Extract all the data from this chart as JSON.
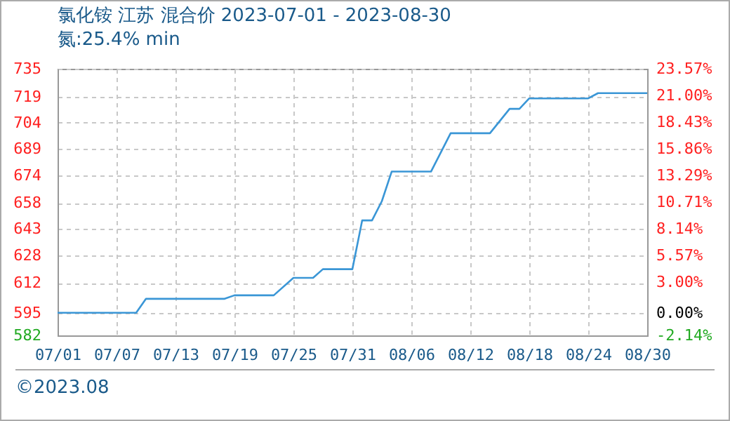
{
  "chart_data": {
    "type": "line",
    "title": "氯化铵 江苏 混合价 2023-07-01 - 2023-08-30",
    "subtitle": "氮:25.4% min",
    "x": [
      "2023-07-01",
      "2023-07-09",
      "2023-07-10",
      "2023-07-18",
      "2023-07-19",
      "2023-07-23",
      "2023-07-25",
      "2023-07-27",
      "2023-07-28",
      "2023-07-31",
      "2023-08-01",
      "2023-08-02",
      "2023-08-03",
      "2023-08-04",
      "2023-08-08",
      "2023-08-10",
      "2023-08-14",
      "2023-08-16",
      "2023-08-17",
      "2023-08-18",
      "2023-08-24",
      "2023-08-25",
      "2023-08-30"
    ],
    "series": [
      {
        "color": "#3a96d6",
        "values": [
          595,
          595,
          603,
          603,
          605,
          605,
          615,
          615,
          620,
          620,
          648,
          648,
          659,
          676,
          676,
          698,
          698,
          712,
          712,
          718,
          718,
          721,
          721
        ]
      }
    ],
    "xlim": [
      "2023-07-01",
      "2023-08-30"
    ],
    "xticks": [
      {
        "value": "2023-07-01",
        "label": "07/01"
      },
      {
        "value": "2023-07-07",
        "label": "07/07"
      },
      {
        "value": "2023-07-13",
        "label": "07/13"
      },
      {
        "value": "2023-07-19",
        "label": "07/19"
      },
      {
        "value": "2023-07-25",
        "label": "07/25"
      },
      {
        "value": "2023-07-31",
        "label": "07/31"
      },
      {
        "value": "2023-08-06",
        "label": "08/06"
      },
      {
        "value": "2023-08-12",
        "label": "08/12"
      },
      {
        "value": "2023-08-18",
        "label": "08/18"
      },
      {
        "value": "2023-08-24",
        "label": "08/24"
      },
      {
        "value": "2023-08-30",
        "label": "08/30"
      }
    ],
    "ylim": [
      582,
      735
    ],
    "yticks": [
      582,
      595,
      612,
      628,
      643,
      658,
      674,
      689,
      704,
      719,
      735
    ],
    "y2lim": [
      -2.14,
      23.57
    ],
    "y2ticks": [
      {
        "value": -2.14,
        "label": "-2.14%"
      },
      {
        "value": 0,
        "label": "0.00%"
      },
      {
        "value": 3,
        "label": "3.00%"
      },
      {
        "value": 5.57,
        "label": "5.57%"
      },
      {
        "value": 8.14,
        "label": "8.14%"
      },
      {
        "value": 10.71,
        "label": "10.71%"
      },
      {
        "value": 13.29,
        "label": "13.29%"
      },
      {
        "value": 15.86,
        "label": "15.86%"
      },
      {
        "value": 18.43,
        "label": "18.43%"
      },
      {
        "value": 21,
        "label": "21.00%"
      },
      {
        "value": 23.57,
        "label": "23.57%"
      }
    ],
    "grid": true,
    "marker": "none",
    "line_style": "solid",
    "annotations": [
      "©2023.08"
    ]
  }
}
